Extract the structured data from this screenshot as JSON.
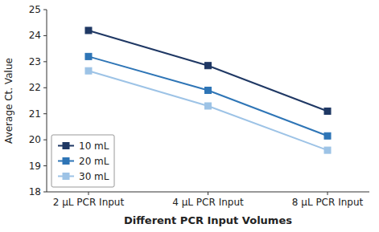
{
  "chart_data": {
    "type": "line",
    "xlabel": "Different PCR Input Volumes",
    "ylabel": "Average Ct. Value",
    "categories": [
      "2 μL PCR Input",
      "4 μL PCR Input",
      "8 μL PCR Input"
    ],
    "series": [
      {
        "name": "10 mL",
        "color": "#1F3864",
        "marker": "square",
        "values": [
          24.2,
          22.85,
          21.1
        ]
      },
      {
        "name": "20 mL",
        "color": "#2E75B6",
        "marker": "square",
        "values": [
          23.2,
          21.9,
          20.15
        ]
      },
      {
        "name": "30 mL",
        "color": "#9DC3E6",
        "marker": "square",
        "values": [
          22.65,
          21.3,
          19.6
        ]
      }
    ],
    "ylim": [
      18,
      25
    ],
    "yticks": [
      18,
      19,
      20,
      21,
      22,
      23,
      24,
      25
    ],
    "legend": "lower left",
    "grid": false
  }
}
